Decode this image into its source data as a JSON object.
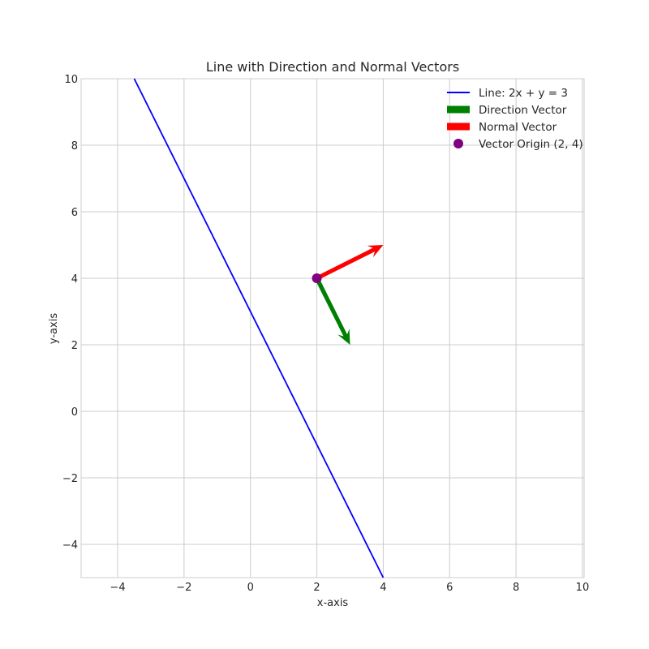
{
  "chart_data": {
    "type": "line",
    "title": "Line with Direction and Normal Vectors",
    "xlabel": "x-axis",
    "ylabel": "y-axis",
    "xlim": [
      -5.1,
      10.05
    ],
    "ylim": [
      -5,
      10
    ],
    "grid": true,
    "legend_position": "top-right",
    "x_ticks": [
      -4,
      -2,
      0,
      2,
      4,
      6,
      8,
      10
    ],
    "y_ticks": [
      -4,
      -2,
      0,
      2,
      4,
      6,
      8,
      10
    ],
    "x_tick_labels": [
      "−4",
      "−2",
      "0",
      "2",
      "4",
      "6",
      "8",
      "10"
    ],
    "y_tick_labels": [
      "−4",
      "−2",
      "0",
      "2",
      "4",
      "6",
      "8",
      "10"
    ],
    "line": {
      "name": "Line: 2x + y = 3",
      "color": "#0000ff",
      "x": [
        -3.5,
        4
      ],
      "y": [
        10,
        -5
      ]
    },
    "direction_vector": {
      "name": "Direction Vector",
      "color": "#008000",
      "origin": [
        2,
        4
      ],
      "components": [
        1,
        -2
      ]
    },
    "normal_vector": {
      "name": "Normal Vector",
      "color": "#ff0000",
      "origin": [
        2,
        4
      ],
      "components": [
        2,
        1
      ]
    },
    "origin_point": {
      "name": "Vector Origin (2, 4)",
      "color": "#800080",
      "x": 2,
      "y": 4
    }
  }
}
